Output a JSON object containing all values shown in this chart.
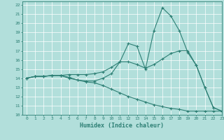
{
  "xlabel": "Humidex (Indice chaleur)",
  "xlim": [
    -0.5,
    23
  ],
  "ylim": [
    10,
    22.4
  ],
  "yticks": [
    10,
    11,
    12,
    13,
    14,
    15,
    16,
    17,
    18,
    19,
    20,
    21,
    22
  ],
  "xticks": [
    0,
    1,
    2,
    3,
    4,
    5,
    6,
    7,
    8,
    9,
    10,
    11,
    12,
    13,
    14,
    15,
    16,
    17,
    18,
    19,
    20,
    21,
    22,
    23
  ],
  "bg_color": "#b2dfdb",
  "line_color": "#2d7f74",
  "grid_color": "#ffffff",
  "lines": [
    [
      14.0,
      14.2,
      14.2,
      14.3,
      14.3,
      14.1,
      13.8,
      13.7,
      13.7,
      14.0,
      14.5,
      15.8,
      17.8,
      17.5,
      15.0,
      19.2,
      21.7,
      20.8,
      19.2,
      16.8,
      15.4,
      13.0,
      10.8,
      10.4
    ],
    [
      14.0,
      14.2,
      14.2,
      14.3,
      14.3,
      14.4,
      14.4,
      14.4,
      14.5,
      14.7,
      15.2,
      15.8,
      15.8,
      15.5,
      15.1,
      15.5,
      16.1,
      16.7,
      17.0,
      17.0,
      15.4,
      13.0,
      10.8,
      10.4
    ],
    [
      14.0,
      14.2,
      14.2,
      14.3,
      14.3,
      14.0,
      13.8,
      13.6,
      13.5,
      13.2,
      12.8,
      12.4,
      12.0,
      11.7,
      11.4,
      11.1,
      10.9,
      10.7,
      10.6,
      10.4,
      10.4,
      10.4,
      10.4,
      10.4
    ]
  ]
}
